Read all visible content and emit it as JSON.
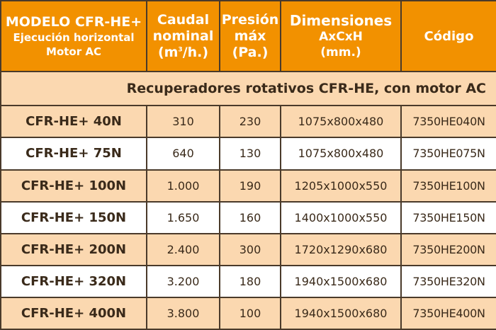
{
  "header": {
    "model": [
      "MODELO CFR-HE+",
      "Ejecución horizontal",
      "Motor AC"
    ],
    "flow": [
      "Caudal",
      "nominal",
      "(m",
      "3",
      "/h.)"
    ],
    "pressure": [
      "Presión",
      "máx",
      "(Pa.)"
    ],
    "dimensions": [
      "Dimensiones",
      "AxCxH",
      "(mm.)"
    ],
    "code": "Código"
  },
  "section_title": "Recuperadores rotativos CFR-HE, con motor AC",
  "rows": [
    {
      "model": "CFR-HE+ 40N",
      "flow": "310",
      "pressure": "230",
      "dimensions": "1075x800x480",
      "code": "7350HE040N"
    },
    {
      "model": "CFR-HE+ 75N",
      "flow": "640",
      "pressure": "130",
      "dimensions": "1075x800x480",
      "code": "7350HE075N"
    },
    {
      "model": "CFR-HE+ 100N",
      "flow": "1.000",
      "pressure": "190",
      "dimensions": "1205x1000x550",
      "code": "7350HE100N"
    },
    {
      "model": "CFR-HE+ 150N",
      "flow": "1.650",
      "pressure": "160",
      "dimensions": "1400x1000x550",
      "code": "7350HE150N"
    },
    {
      "model": "CFR-HE+ 200N",
      "flow": "2.400",
      "pressure": "300",
      "dimensions": "1720x1290x680",
      "code": "7350HE200N"
    },
    {
      "model": "CFR-HE+ 320N",
      "flow": "3.200",
      "pressure": "180",
      "dimensions": "1940x1500x680",
      "code": "7350HE320N"
    },
    {
      "model": "CFR-HE+ 400N",
      "flow": "3.800",
      "pressure": "100",
      "dimensions": "1940x1500x680",
      "code": "7350HE400N"
    }
  ],
  "colors": {
    "header_bg": "#f29100",
    "band_bg": "#fbd8b0",
    "border": "#4a3a2a"
  }
}
